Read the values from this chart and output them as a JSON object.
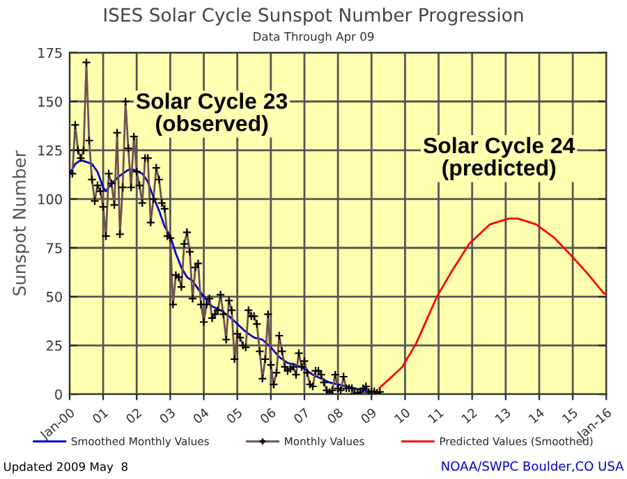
{
  "chart_data": {
    "type": "line",
    "title": "ISES Solar Cycle Sunspot Number Progression",
    "subtitle": "Data Through Apr 09",
    "ylabel": "Sunspot Number",
    "xlim": [
      2000,
      2016
    ],
    "ylim": [
      0,
      175
    ],
    "xticks": [
      {
        "value": 2000,
        "label": "Jan-00"
      },
      {
        "value": 2001,
        "label": "01"
      },
      {
        "value": 2002,
        "label": "02"
      },
      {
        "value": 2003,
        "label": "03"
      },
      {
        "value": 2004,
        "label": "04"
      },
      {
        "value": 2005,
        "label": "05"
      },
      {
        "value": 2006,
        "label": "06"
      },
      {
        "value": 2007,
        "label": "07"
      },
      {
        "value": 2008,
        "label": "08"
      },
      {
        "value": 2009,
        "label": "09"
      },
      {
        "value": 2010,
        "label": "10"
      },
      {
        "value": 2011,
        "label": "11"
      },
      {
        "value": 2012,
        "label": "12"
      },
      {
        "value": 2013,
        "label": "13"
      },
      {
        "value": 2014,
        "label": "14"
      },
      {
        "value": 2015,
        "label": "15"
      },
      {
        "value": 2016,
        "label": "Jan-16"
      }
    ],
    "yticks": [
      0,
      25,
      50,
      75,
      100,
      125,
      150,
      175
    ],
    "grid": true,
    "legend": "bottom",
    "series": [
      {
        "name": "Smoothed Monthly Values",
        "color": "#0000cc",
        "marker": "none",
        "x": [
          2000.0,
          2000.17,
          2000.33,
          2000.5,
          2000.67,
          2000.83,
          2001.0,
          2001.08,
          2001.25,
          2001.5,
          2001.75,
          2001.92,
          2002.17,
          2002.33,
          2002.5,
          2002.67,
          2002.83,
          2003.0,
          2003.17,
          2003.33,
          2003.5,
          2003.67,
          2003.83,
          2004.0,
          2004.25,
          2004.5,
          2004.75,
          2005.0,
          2005.25,
          2005.5,
          2005.75,
          2006.0,
          2006.25,
          2006.5,
          2006.75,
          2007.0,
          2007.25,
          2007.5,
          2007.75,
          2008.0,
          2008.25,
          2008.5,
          2008.75,
          2008.92
        ],
        "values": [
          113,
          118,
          120,
          119,
          118,
          114,
          106,
          104,
          108,
          112,
          115,
          115,
          113,
          109,
          101,
          94,
          86,
          81,
          72,
          65,
          60,
          58,
          54,
          50,
          45,
          43,
          40,
          36,
          32,
          29,
          28,
          24,
          19,
          16,
          15,
          13,
          10,
          8,
          6,
          5,
          4,
          3,
          2,
          2
        ]
      },
      {
        "name": "Monthly Values",
        "color": "#705050",
        "marker": "cross",
        "x": [
          2000.0,
          2000.083,
          2000.167,
          2000.25,
          2000.333,
          2000.417,
          2000.5,
          2000.583,
          2000.667,
          2000.75,
          2000.833,
          2000.917,
          2001.0,
          2001.083,
          2001.167,
          2001.25,
          2001.333,
          2001.417,
          2001.5,
          2001.583,
          2001.667,
          2001.75,
          2001.833,
          2001.917,
          2002.0,
          2002.083,
          2002.167,
          2002.25,
          2002.333,
          2002.417,
          2002.5,
          2002.583,
          2002.667,
          2002.75,
          2002.833,
          2002.917,
          2003.0,
          2003.083,
          2003.167,
          2003.25,
          2003.333,
          2003.417,
          2003.5,
          2003.583,
          2003.667,
          2003.75,
          2003.833,
          2003.917,
          2004.0,
          2004.083,
          2004.167,
          2004.25,
          2004.333,
          2004.417,
          2004.5,
          2004.583,
          2004.667,
          2004.75,
          2004.833,
          2004.917,
          2005.0,
          2005.083,
          2005.167,
          2005.25,
          2005.333,
          2005.417,
          2005.5,
          2005.583,
          2005.667,
          2005.75,
          2005.833,
          2005.917,
          2006.0,
          2006.083,
          2006.167,
          2006.25,
          2006.333,
          2006.417,
          2006.5,
          2006.583,
          2006.667,
          2006.75,
          2006.833,
          2006.917,
          2007.0,
          2007.083,
          2007.167,
          2007.25,
          2007.333,
          2007.417,
          2007.5,
          2007.583,
          2007.667,
          2007.75,
          2007.833,
          2007.917,
          2008.0,
          2008.083,
          2008.167,
          2008.25,
          2008.333,
          2008.417,
          2008.5,
          2008.583,
          2008.667,
          2008.75,
          2008.833,
          2008.917,
          2009.0,
          2009.083,
          2009.167,
          2009.25
        ],
        "values": [
          113,
          113,
          138,
          125,
          121,
          125,
          170,
          130,
          110,
          99,
          107,
          104,
          96,
          81,
          113,
          108,
          97,
          134,
          82,
          106,
          150,
          126,
          106,
          132,
          114,
          107,
          98,
          121,
          121,
          88,
          100,
          116,
          110,
          98,
          95,
          81,
          80,
          46,
          61,
          60,
          55,
          77,
          83,
          73,
          49,
          65,
          67,
          46,
          37,
          46,
          49,
          39,
          41,
          43,
          51,
          41,
          28,
          48,
          43,
          18,
          31,
          29,
          25,
          24,
          43,
          40,
          40,
          36,
          22,
          8,
          18,
          41,
          15,
          5,
          11,
          30,
          22,
          14,
          12,
          13,
          14,
          10,
          21,
          14,
          17,
          11,
          5,
          4,
          12,
          12,
          10,
          6,
          2,
          1,
          2,
          10,
          3,
          2,
          9,
          3,
          3,
          3,
          0.5,
          0.5,
          1,
          3,
          4,
          1,
          1.5,
          1.4,
          0.7,
          1.2
        ]
      },
      {
        "name": "Predicted Values (Smoothed)",
        "color": "#ff0000",
        "marker": "none",
        "x": [
          2009.23,
          2009.92,
          2010.33,
          2010.95,
          2011.43,
          2011.91,
          2012.53,
          2013.09,
          2013.36,
          2013.91,
          2014.46,
          2015.01,
          2015.43,
          2015.91,
          2016.0
        ],
        "values": [
          3,
          14,
          26,
          50,
          64,
          77,
          87,
          90,
          90,
          87,
          80,
          70,
          62,
          52,
          51
        ]
      }
    ],
    "annotations": [
      "Solar Cycle 23\n(observed)",
      "Solar Cycle 24\n(predicted)",
      "Updated 2009 May  8",
      "NOAA/SWPC Boulder,CO USA"
    ]
  }
}
